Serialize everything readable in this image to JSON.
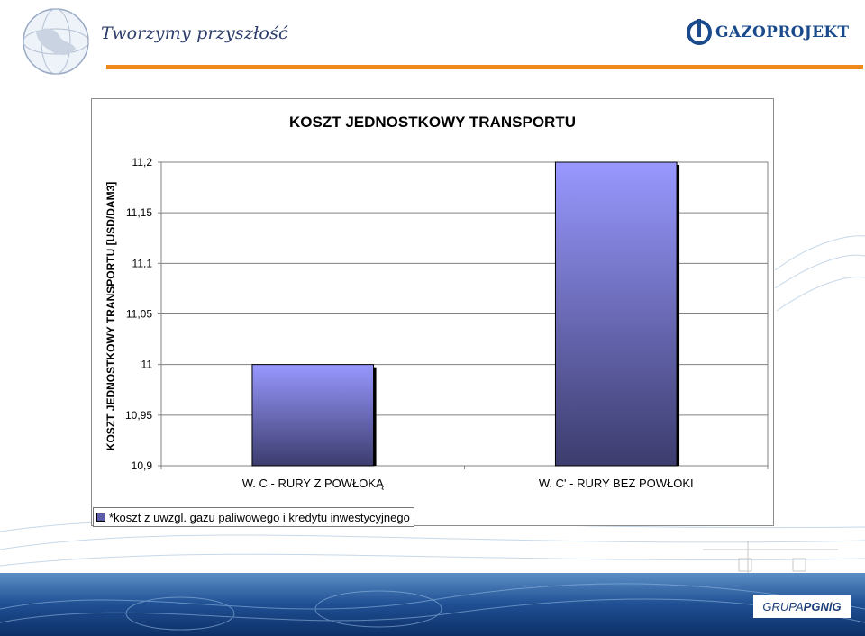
{
  "header": {
    "tagline": "Tworzymy przyszłość",
    "logo_text": "GAZOPROJEKT",
    "footer_brand_prefix": "GRUPA ",
    "footer_brand": "PGNiG"
  },
  "colors": {
    "bar_top": "#9898ff",
    "bar_bottom": "#3c3c6e",
    "accent_orange": "#f08a1c",
    "brand_blue": "#1a4a8c"
  },
  "chart_data": {
    "type": "bar",
    "title": "KOSZT JEDNOSTKOWY TRANSPORTU",
    "ylabel": "KOSZT JEDNOSTKOWY TRANSPORTU [USD/DAM3]",
    "xlabel": "",
    "categories": [
      "W. C - RURY Z POWŁOKĄ",
      "W. C' - RURY BEZ POWŁOKI"
    ],
    "values": [
      11.0,
      11.2
    ],
    "ylim": [
      10.9,
      11.2
    ],
    "yticks": [
      "11,2",
      "11,15",
      "11,1",
      "11,05",
      "11",
      "10,95",
      "10,9"
    ],
    "ytick_values": [
      11.2,
      11.15,
      11.1,
      11.05,
      11.0,
      10.95,
      10.9
    ],
    "grid": true,
    "legend": {
      "placement": "bottom-left",
      "label": "*koszt z uwzgl. gazu paliwowego i kredytu inwestycyjnego"
    }
  }
}
